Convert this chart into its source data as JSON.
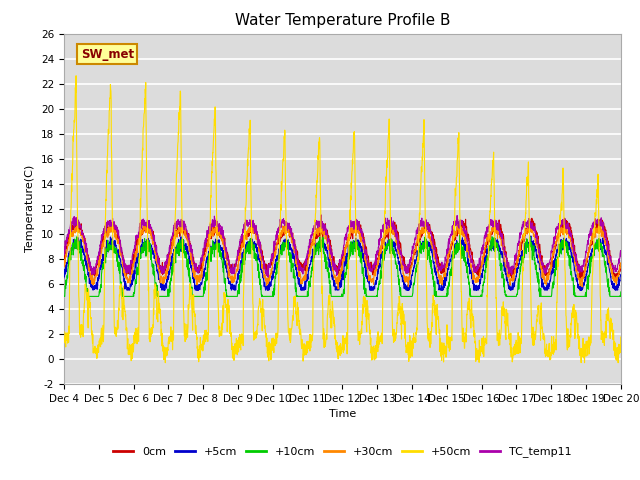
{
  "title": "Water Temperature Profile B",
  "xlabel": "Time",
  "ylabel": "Temperature(C)",
  "ylim": [
    -2,
    26
  ],
  "yticks": [
    -2,
    0,
    2,
    4,
    6,
    8,
    10,
    12,
    14,
    16,
    18,
    20,
    22,
    24,
    26
  ],
  "colors": {
    "0cm": "#cc0000",
    "+5cm": "#0000cc",
    "+10cm": "#00cc00",
    "+30cm": "#ff8800",
    "+50cm": "#ffdd00",
    "TC_temp11": "#aa00aa"
  },
  "annotation_text": "SW_met",
  "annotation_color": "#880000",
  "annotation_bg": "#ffff99",
  "annotation_edge": "#cc8800",
  "background_color": "#dcdcdc",
  "grid_color": "#ffffff",
  "title_fontsize": 11,
  "axis_fontsize": 8,
  "tick_fontsize": 7.5
}
